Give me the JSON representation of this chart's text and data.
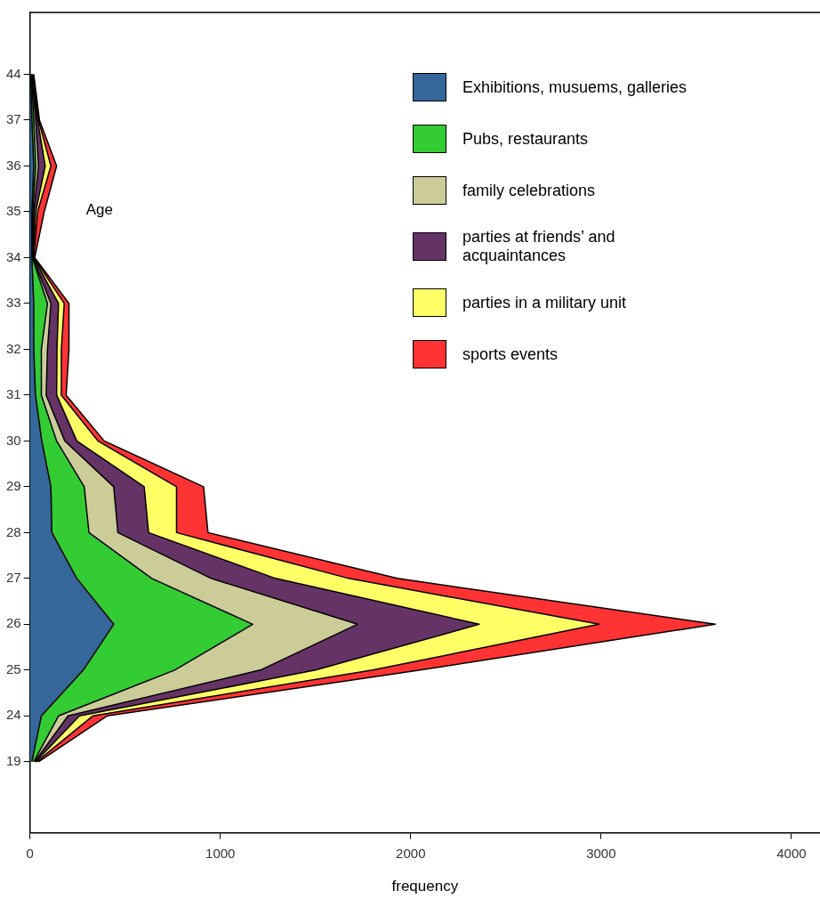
{
  "chart_data": {
    "type": "area",
    "stacked": true,
    "orientation": "horizontal",
    "xlabel": "frequency",
    "ylabel": "Age",
    "legend": "top right",
    "grid": false,
    "categories": [
      "44",
      "37",
      "36",
      "35",
      "34",
      "33",
      "32",
      "31",
      "30",
      "29",
      "28",
      "27",
      "26",
      "25",
      "24",
      "19"
    ],
    "xlim": [
      0,
      4150
    ],
    "xticks": [
      0,
      1000,
      2000,
      3000,
      4000
    ],
    "series": [
      {
        "name": "Exhibitions, musuems, galleries",
        "color": "#35679a",
        "values": [
          5,
          10,
          20,
          10,
          10,
          20,
          20,
          29,
          62,
          110,
          115,
          246,
          440,
          280,
          60,
          10
        ]
      },
      {
        "name": "Pubs, restaurants",
        "color": "#33cc33",
        "values": [
          3,
          10,
          10,
          5,
          3,
          72,
          40,
          31,
          78,
          175,
          195,
          394,
          730,
          480,
          90,
          10
        ]
      },
      {
        "name": "family celebrations",
        "color": "#cccc99",
        "values": [
          2,
          10,
          15,
          5,
          2,
          18,
          32,
          25,
          43,
          155,
          152,
          312,
          550,
          450,
          50,
          5
        ]
      },
      {
        "name": "parties at friends’ and acquaintances",
        "color": "#663366",
        "values": [
          2,
          10,
          35,
          10,
          3,
          40,
          50,
          55,
          63,
          160,
          161,
          338,
          640,
          290,
          60,
          5
        ]
      },
      {
        "name": "parties in a military unit",
        "color": "#ffff66",
        "values": [
          3,
          5,
          30,
          10,
          2,
          30,
          23,
          25,
          111,
          170,
          147,
          385,
          630,
          300,
          70,
          5
        ]
      },
      {
        "name": "sports events",
        "color": "#ff3333",
        "values": [
          5,
          5,
          30,
          35,
          5,
          25,
          40,
          25,
          33,
          142,
          165,
          255,
          610,
          250,
          75,
          10
        ]
      }
    ]
  }
}
